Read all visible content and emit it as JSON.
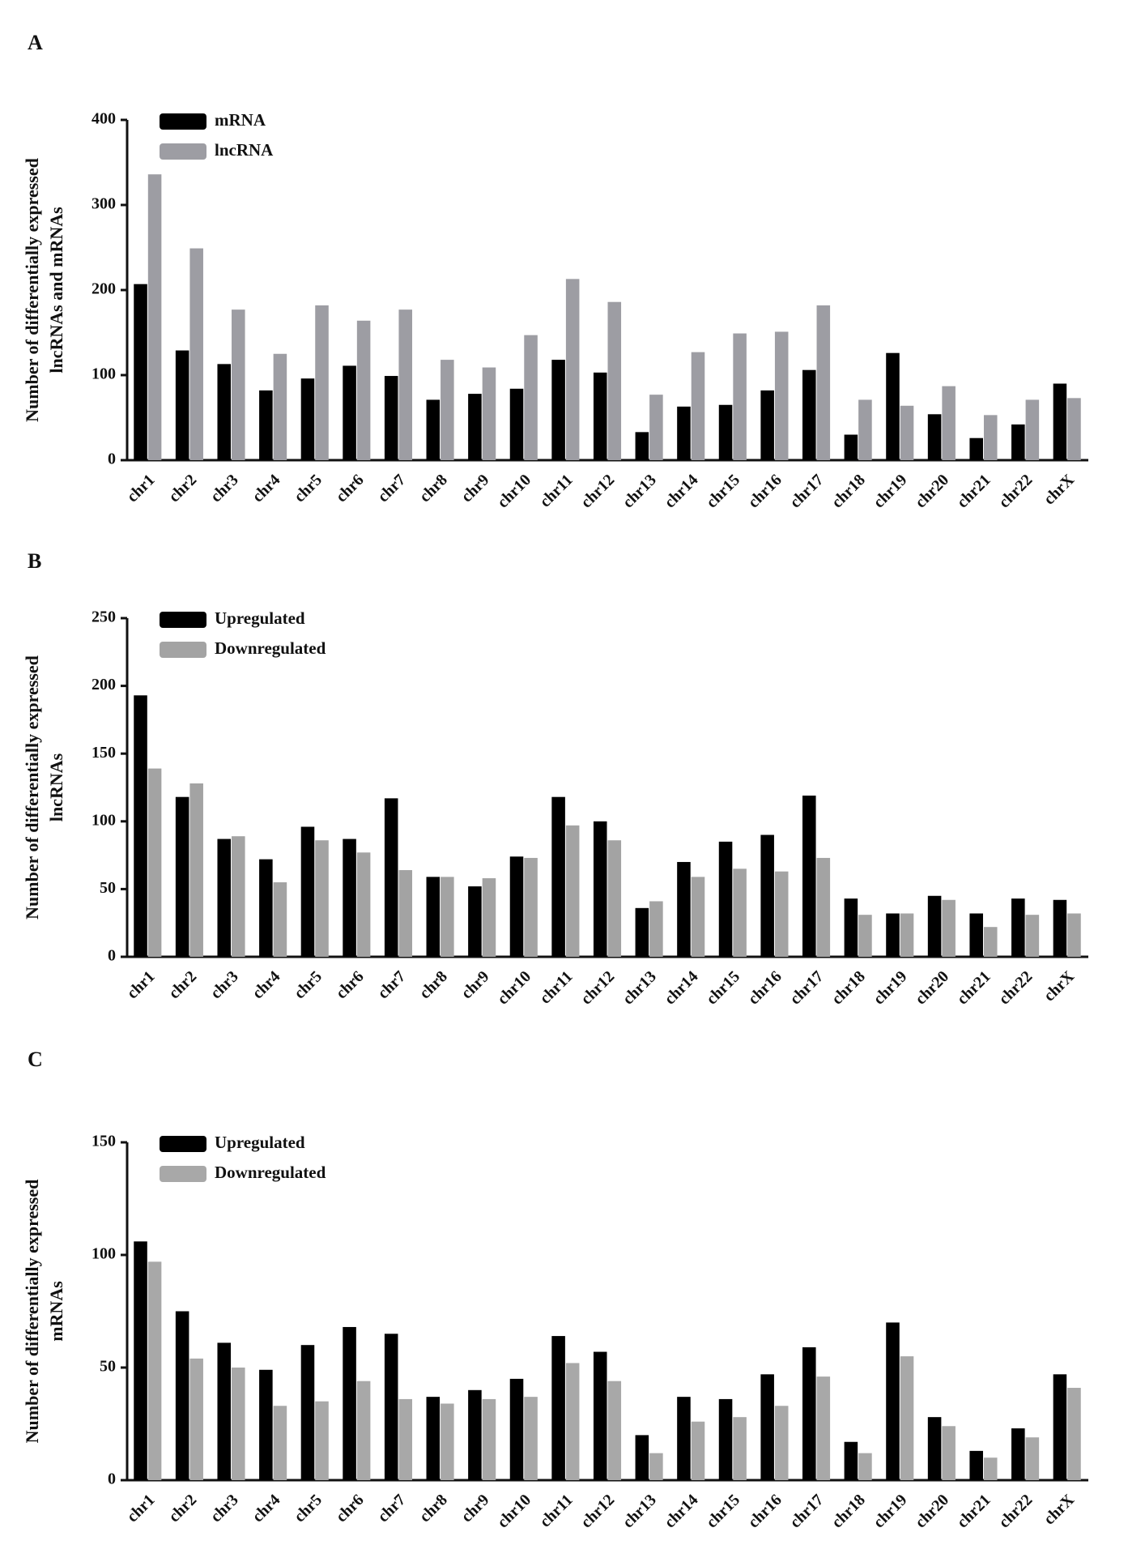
{
  "chart_data": [
    {
      "type": "bar",
      "label": "A",
      "ylabel": [
        "Number of differentially expressed",
        "lncRNAs and mRNAs"
      ],
      "categories": [
        "chr1",
        "chr2",
        "chr3",
        "chr4",
        "chr5",
        "chr6",
        "chr7",
        "chr8",
        "chr9",
        "chr10",
        "chr11",
        "chr12",
        "chr13",
        "chr14",
        "chr15",
        "chr16",
        "chr17",
        "chr18",
        "chr19",
        "chr20",
        "chr21",
        "chr22",
        "chrX"
      ],
      "series": [
        {
          "name": "mRNA",
          "color": "#000000",
          "values": [
            207,
            129,
            113,
            82,
            96,
            111,
            99,
            71,
            78,
            84,
            118,
            103,
            33,
            63,
            65,
            82,
            106,
            30,
            126,
            54,
            26,
            42,
            90
          ]
        },
        {
          "name": "lncRNA",
          "color": "#9d9da3",
          "values": [
            336,
            249,
            177,
            125,
            182,
            164,
            177,
            118,
            109,
            147,
            213,
            186,
            77,
            127,
            149,
            151,
            182,
            71,
            64,
            87,
            53,
            71,
            73
          ]
        }
      ],
      "ylim": [
        0,
        400
      ],
      "yticks": [
        0,
        100,
        200,
        300,
        400
      ],
      "grid": false,
      "legend": "top-left"
    },
    {
      "type": "bar",
      "label": "B",
      "ylabel": [
        "Number of differentially expressed",
        "lncRNAs"
      ],
      "categories": [
        "chr1",
        "chr2",
        "chr3",
        "chr4",
        "chr5",
        "chr6",
        "chr7",
        "chr8",
        "chr9",
        "chr10",
        "chr11",
        "chr12",
        "chr13",
        "chr14",
        "chr15",
        "chr16",
        "chr17",
        "chr18",
        "chr19",
        "chr20",
        "chr21",
        "chr22",
        "chrX"
      ],
      "series": [
        {
          "name": "Upregulated",
          "color": "#000000",
          "values": [
            193,
            118,
            87,
            72,
            96,
            87,
            117,
            59,
            52,
            74,
            118,
            100,
            36,
            70,
            85,
            90,
            119,
            43,
            32,
            45,
            32,
            43,
            42
          ]
        },
        {
          "name": "Downregulated",
          "color": "#a3a3a3",
          "values": [
            139,
            128,
            89,
            55,
            86,
            77,
            64,
            59,
            58,
            73,
            97,
            86,
            41,
            59,
            65,
            63,
            73,
            31,
            32,
            42,
            22,
            31,
            32
          ]
        }
      ],
      "ylim": [
        0,
        250
      ],
      "yticks": [
        0,
        50,
        100,
        150,
        200,
        250
      ],
      "grid": false,
      "legend": "top-left"
    },
    {
      "type": "bar",
      "label": "C",
      "ylabel": [
        "Number of differentially expressed",
        "mRNAs"
      ],
      "categories": [
        "chr1",
        "chr2",
        "chr3",
        "chr4",
        "chr5",
        "chr6",
        "chr7",
        "chr8",
        "chr9",
        "chr10",
        "chr11",
        "chr12",
        "chr13",
        "chr14",
        "chr15",
        "chr16",
        "chr17",
        "chr18",
        "chr19",
        "chr20",
        "chr21",
        "chr22",
        "chrX"
      ],
      "series": [
        {
          "name": "Upregulated",
          "color": "#000000",
          "values": [
            106,
            75,
            61,
            49,
            60,
            68,
            65,
            37,
            40,
            45,
            64,
            57,
            20,
            37,
            36,
            47,
            59,
            17,
            70,
            28,
            13,
            23,
            47
          ]
        },
        {
          "name": "Downregulated",
          "color": "#a8a8a8",
          "values": [
            97,
            54,
            50,
            33,
            35,
            44,
            36,
            34,
            36,
            37,
            52,
            44,
            12,
            26,
            28,
            33,
            46,
            12,
            55,
            24,
            10,
            19,
            41
          ]
        }
      ],
      "ylim": [
        0,
        150
      ],
      "yticks": [
        0,
        50,
        100,
        150
      ],
      "grid": false,
      "legend": "top-left"
    }
  ]
}
